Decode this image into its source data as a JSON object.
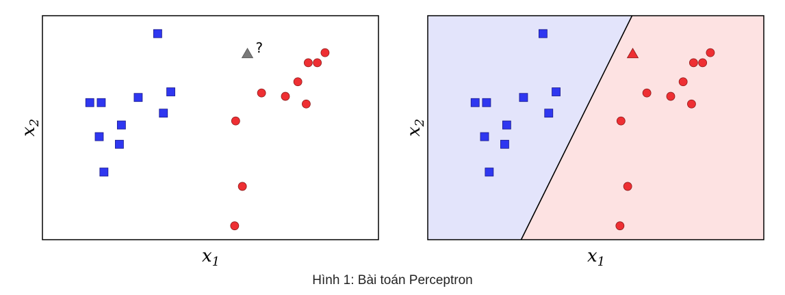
{
  "caption": "Hình 1: Bài toán Perceptron",
  "colors": {
    "class_a": "#2f37f0",
    "class_b": "#ee2f33",
    "unknown": "#7a7a7a",
    "region_a": "#e3e4fb",
    "region_b": "#fde2e2",
    "frame": "#000000"
  },
  "chart_data": [
    {
      "type": "scatter",
      "title": "",
      "xlabel": "x1",
      "ylabel": "x2",
      "xlim": [
        0,
        10
      ],
      "ylim": [
        0,
        10
      ],
      "grid": false,
      "series": [
        {
          "marker": "square",
          "color": "#2f37f0",
          "x": [
            3.43,
            3.82,
            1.41,
            1.75,
            2.85,
            3.6,
            2.35,
            1.69,
            2.29,
            1.83
          ],
          "y": [
            9.2,
            6.6,
            6.12,
            6.12,
            6.35,
            5.65,
            5.12,
            4.6,
            4.26,
            3.02
          ]
        },
        {
          "marker": "circle",
          "color": "#ee2f33",
          "x": [
            8.41,
            7.91,
            8.18,
            7.6,
            6.52,
            7.23,
            7.85,
            5.75,
            5.95,
            5.72
          ],
          "y": [
            8.35,
            7.9,
            7.9,
            7.05,
            6.55,
            6.4,
            6.06,
            5.3,
            2.38,
            0.62
          ]
        },
        {
          "marker": "triangle",
          "color": "#7a7a7a",
          "annotation": "?",
          "x": [
            6.1
          ],
          "y": [
            8.3
          ]
        }
      ]
    },
    {
      "type": "scatter",
      "title": "",
      "xlabel": "x1",
      "ylabel": "x2",
      "xlim": [
        0,
        10
      ],
      "ylim": [
        0,
        10
      ],
      "grid": false,
      "decision_boundary": {
        "x": [
          2.78,
          6.08
        ],
        "y": [
          0,
          10
        ]
      },
      "series": [
        {
          "marker": "square",
          "color": "#2f37f0",
          "x": [
            3.43,
            3.82,
            1.41,
            1.75,
            2.85,
            3.6,
            2.35,
            1.69,
            2.29,
            1.83
          ],
          "y": [
            9.2,
            6.6,
            6.12,
            6.12,
            6.35,
            5.65,
            5.12,
            4.6,
            4.26,
            3.02
          ]
        },
        {
          "marker": "circle",
          "color": "#ee2f33",
          "x": [
            8.41,
            7.91,
            8.18,
            7.6,
            6.52,
            7.23,
            7.85,
            5.75,
            5.95,
            5.72
          ],
          "y": [
            8.35,
            7.9,
            7.9,
            7.05,
            6.55,
            6.4,
            6.06,
            5.3,
            2.38,
            0.62
          ]
        },
        {
          "marker": "triangle",
          "color": "#ee2f33",
          "x": [
            6.1
          ],
          "y": [
            8.3
          ]
        }
      ]
    }
  ]
}
